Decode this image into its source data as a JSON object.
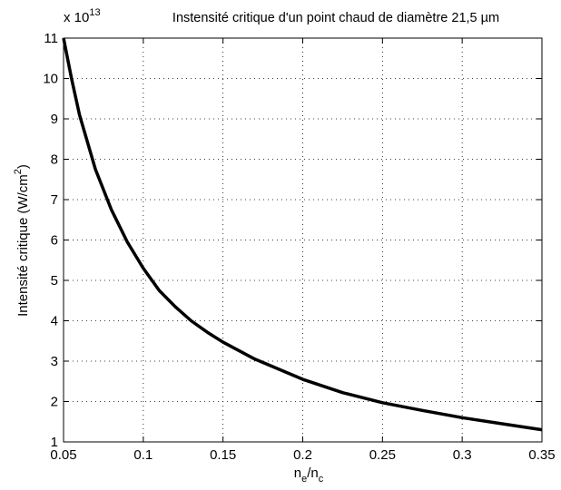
{
  "chart_data": {
    "type": "line",
    "title": "Instensité critique d'un point chaud de diamètre 21,5 µm",
    "xlabel": {
      "base": "n",
      "sub1": "e",
      "slash": "/",
      "base2": "n",
      "sub2": "c"
    },
    "ylabel": {
      "main": "Intensité critique (W/cm",
      "sup": "2",
      "close": ")"
    },
    "y_multiplier": {
      "prefix": "x 10",
      "exponent": "13"
    },
    "xlim": [
      0.05,
      0.35
    ],
    "ylim": [
      1,
      11
    ],
    "x_ticks": [
      0.05,
      0.1,
      0.15,
      0.2,
      0.25,
      0.3,
      0.35
    ],
    "x_tick_labels": [
      "0.05",
      "0.1",
      "0.15",
      "0.2",
      "0.25",
      "0.3",
      "0.35"
    ],
    "y_ticks": [
      1,
      2,
      3,
      4,
      5,
      6,
      7,
      8,
      9,
      10,
      11
    ],
    "y_tick_labels": [
      "1",
      "2",
      "3",
      "4",
      "5",
      "6",
      "7",
      "8",
      "9",
      "10",
      "11"
    ],
    "grid": true,
    "series": [
      {
        "color": "#000000",
        "x": [
          0.05,
          0.055,
          0.06,
          0.07,
          0.08,
          0.09,
          0.1,
          0.11,
          0.12,
          0.13,
          0.14,
          0.15,
          0.17,
          0.2,
          0.225,
          0.25,
          0.275,
          0.3,
          0.325,
          0.35
        ],
        "y": [
          11.0,
          10.0,
          9.1,
          7.75,
          6.75,
          5.95,
          5.3,
          4.75,
          4.35,
          4.0,
          3.72,
          3.47,
          3.05,
          2.55,
          2.22,
          1.97,
          1.78,
          1.6,
          1.45,
          1.3
        ]
      }
    ]
  }
}
